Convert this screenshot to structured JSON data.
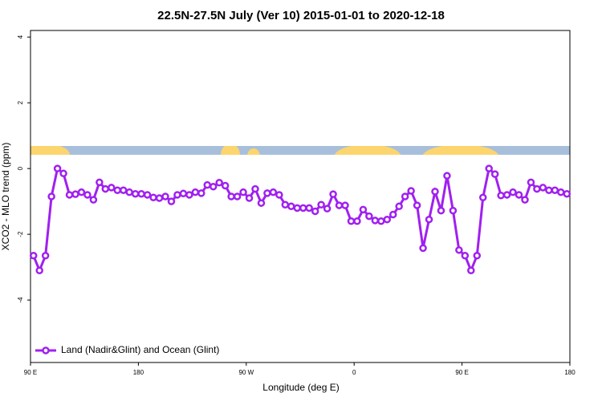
{
  "chart_data": {
    "type": "line",
    "title": "22.5N-27.5N July (Ver 10)   2015-01-01 to 2020-12-18",
    "x_label": "Longitude (deg E)",
    "y_label": "XCO2 - MLO trend (ppm)",
    "x": [
      92.5,
      97.5,
      102.5,
      107.5,
      112.5,
      117.5,
      122.5,
      127.5,
      132.5,
      137.5,
      142.5,
      147.5,
      152.5,
      157.5,
      162.5,
      167.5,
      172.5,
      177.5,
      182.5,
      187.5,
      192.5,
      197.5,
      202.5,
      207.5,
      212.5,
      217.5,
      222.5,
      227.5,
      232.5,
      237.5,
      242.5,
      247.5,
      252.5,
      257.5,
      262.5,
      267.5,
      272.5,
      277.5,
      282.5,
      287.5,
      292.5,
      297.5,
      302.5,
      307.5,
      312.5,
      317.5,
      322.5,
      327.5,
      332.5,
      337.5,
      342.5,
      347.5,
      352.5,
      357.5,
      362.5,
      367.5,
      372.5,
      377.5,
      382.5,
      387.5,
      392.5,
      397.5,
      402.5,
      407.5,
      412.5,
      417.5,
      422.5,
      427.5,
      432.5,
      437.5,
      442.5,
      447.5,
      452.5,
      457.5,
      462.5,
      467.5,
      472.5,
      477.5,
      482.5,
      487.5,
      492.5,
      497.5,
      502.5,
      507.5,
      512.5,
      517.5,
      522.5,
      527.5,
      532.5,
      537.5
    ],
    "series": [
      {
        "name": "Land (Nadir&Glint) and Ocean (Glint)",
        "color": "#a020f0",
        "values": [
          -2.65,
          -3.1,
          -2.65,
          -0.85,
          0.0,
          -0.15,
          -0.8,
          -0.78,
          -0.72,
          -0.8,
          -0.95,
          -0.42,
          -0.62,
          -0.58,
          -0.66,
          -0.66,
          -0.72,
          -0.77,
          -0.77,
          -0.8,
          -0.88,
          -0.9,
          -0.85,
          -1.0,
          -0.8,
          -0.76,
          -0.8,
          -0.72,
          -0.75,
          -0.5,
          -0.55,
          -0.43,
          -0.52,
          -0.85,
          -0.85,
          -0.72,
          -0.9,
          -0.62,
          -1.05,
          -0.75,
          -0.72,
          -0.8,
          -1.1,
          -1.15,
          -1.2,
          -1.2,
          -1.2,
          -1.3,
          -1.1,
          -1.22,
          -0.78,
          -1.12,
          -1.12,
          -1.6,
          -1.6,
          -1.25,
          -1.45,
          -1.58,
          -1.6,
          -1.55,
          -1.4,
          -1.15,
          -0.85,
          -0.68,
          -1.12,
          -2.42,
          -1.55,
          -0.7,
          -1.28,
          -0.22,
          -1.28,
          -2.48,
          -2.65,
          -3.1,
          -2.65,
          -0.88,
          0.0,
          -0.17,
          -0.82,
          -0.8,
          -0.72,
          -0.8,
          -0.95,
          -0.42,
          -0.62,
          -0.58,
          -0.66,
          -0.66,
          -0.72,
          -0.77
        ]
      }
    ],
    "xlim": [
      90,
      540
    ],
    "xticks": [
      {
        "value": 90,
        "label": "90 E"
      },
      180,
      {
        "value": 270,
        "label": "90 W"
      },
      {
        "value": 360,
        "label": "0"
      },
      {
        "value": 450,
        "label": "90 E"
      },
      {
        "value": 540,
        "label": "180"
      }
    ],
    "ylim": [
      -5.9,
      4.2
    ],
    "yticks": [
      4,
      2,
      0,
      -2,
      -4
    ],
    "legend": "bottom-left"
  }
}
